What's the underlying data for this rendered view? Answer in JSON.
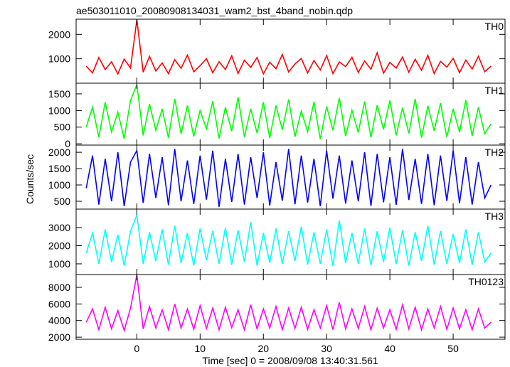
{
  "chart_data": {
    "type": "line",
    "title": "ae503011010_20080908134031_wam2_bst_4band_nobin.qdp",
    "xlabel": "Time [sec] 0 = 2008/09/08 13:40:31.561",
    "ylabel": "Counts/sec",
    "xlim": [
      -9.6,
      58.2
    ],
    "xticks": [
      0,
      10,
      20,
      30,
      40,
      50
    ],
    "x": [
      -8,
      -7,
      -6,
      -5,
      -4,
      -3,
      -2,
      -1,
      0,
      1,
      2,
      3,
      4,
      5,
      6,
      7,
      8,
      9,
      10,
      11,
      12,
      13,
      14,
      15,
      16,
      17,
      18,
      19,
      20,
      21,
      22,
      23,
      24,
      25,
      26,
      27,
      28,
      29,
      30,
      31,
      32,
      33,
      34,
      35,
      36,
      37,
      38,
      39,
      40,
      41,
      42,
      43,
      44,
      45,
      46,
      47,
      48,
      49,
      50,
      51,
      52,
      53,
      54,
      55,
      56
    ],
    "series": [
      {
        "name": "TH0",
        "color": "#ff0000",
        "ylim": [
          0,
          2620
        ],
        "yticks": [
          1000,
          2000
        ],
        "values": [
          700,
          420,
          1050,
          560,
          880,
          380,
          990,
          620,
          2600,
          450,
          1100,
          500,
          830,
          390,
          960,
          610,
          1150,
          470,
          720,
          1000,
          430,
          880,
          560,
          1120,
          400,
          940,
          650,
          1050,
          380,
          860,
          590,
          1180,
          460,
          790,
          1010,
          420,
          930,
          540,
          1130,
          390,
          870,
          680,
          1060,
          440,
          910,
          570,
          1250,
          410,
          850,
          620,
          1070,
          450,
          980,
          530,
          1140,
          400,
          890,
          660,
          1020,
          430,
          950,
          580,
          1100,
          470,
          700
        ]
      },
      {
        "name": "TH1",
        "color": "#00ff00",
        "ylim": [
          -40,
          1820
        ],
        "yticks": [
          0,
          500,
          1000,
          1500
        ],
        "values": [
          500,
          1100,
          200,
          1250,
          350,
          950,
          150,
          1300,
          1780,
          250,
          1200,
          400,
          1050,
          180,
          1350,
          300,
          1150,
          220,
          1000,
          450,
          1280,
          160,
          1100,
          380,
          1400,
          200,
          1050,
          320,
          1250,
          170,
          1150,
          420,
          1330,
          210,
          980,
          360,
          1260,
          140,
          1120,
          400,
          1380,
          230,
          1010,
          340,
          1270,
          190,
          1160,
          430,
          1300,
          250,
          1080,
          310,
          1350,
          180,
          1140,
          390,
          1220,
          200,
          1050,
          350,
          1310,
          240,
          1100,
          300,
          600
        ]
      },
      {
        "name": "TH2",
        "color": "#0000ff",
        "ylim": [
          260,
          2220
        ],
        "yticks": [
          500,
          1000,
          1500,
          2000
        ],
        "values": [
          900,
          1900,
          400,
          1800,
          500,
          2000,
          350,
          1700,
          2050,
          450,
          1950,
          600,
          1850,
          380,
          2100,
          500,
          1750,
          420,
          1900,
          550,
          2050,
          330,
          1800,
          480,
          1950,
          400,
          1850,
          600,
          2000,
          370,
          1700,
          520,
          2100,
          410,
          1900,
          460,
          1800,
          350,
          2050,
          580,
          1900,
          430,
          1750,
          500,
          2000,
          360,
          1950,
          470,
          1850,
          390,
          2100,
          540,
          1800,
          420,
          1950,
          380,
          1900,
          510,
          2050,
          440,
          1850,
          400,
          1700,
          600,
          1000
        ]
      },
      {
        "name": "TH3",
        "color": "#00ffff",
        "ylim": [
          410,
          4020
        ],
        "yticks": [
          1000,
          2000,
          3000
        ],
        "values": [
          1600,
          2700,
          1000,
          2900,
          1100,
          2600,
          900,
          2800,
          3700,
          1000,
          2750,
          1150,
          2900,
          950,
          3100,
          1050,
          2700,
          900,
          2950,
          1200,
          2800,
          1000,
          3000,
          950,
          2850,
          1100,
          3300,
          900,
          2700,
          1050,
          2950,
          1000,
          2800,
          1150,
          3050,
          950,
          2750,
          1000,
          2900,
          880,
          3400,
          1050,
          2700,
          1000,
          2950,
          920,
          2800,
          1100,
          3000,
          980,
          2850,
          900,
          2750,
          1150,
          3100,
          950,
          2800,
          1000,
          2650,
          1050,
          2900,
          940,
          2750,
          1100,
          1600
        ]
      },
      {
        "name": "TH0123",
        "color": "#ff00ff",
        "ylim": [
          1750,
          9540
        ],
        "yticks": [
          2000,
          4000,
          6000,
          8000
        ],
        "values": [
          3800,
          5400,
          2900,
          5600,
          3000,
          5200,
          2800,
          5500,
          9500,
          3000,
          5700,
          3100,
          5300,
          2900,
          6000,
          3100,
          5400,
          2950,
          5800,
          3050,
          5500,
          2900,
          5600,
          3150,
          5300,
          2900,
          5900,
          3000,
          5400,
          3100,
          5700,
          2900,
          5500,
          3050,
          5600,
          2950,
          5300,
          3100,
          5800,
          2900,
          6200,
          3000,
          5400,
          3050,
          5700,
          2900,
          5500,
          3100,
          5300,
          2950,
          5900,
          3000,
          5600,
          2900,
          5400,
          3100,
          5700,
          2950,
          5500,
          3000,
          5300,
          2900,
          5400,
          3100,
          3800
        ]
      }
    ]
  }
}
